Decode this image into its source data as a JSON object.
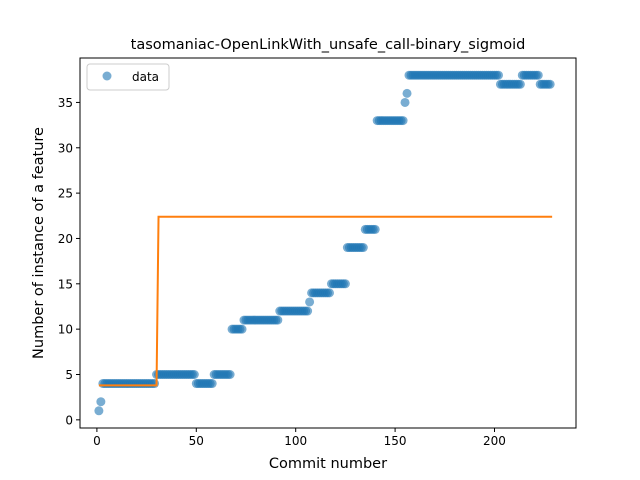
{
  "chart_data": {
    "type": "scatter",
    "title": "tasomaniac-OpenLinkWith_unsafe_call-binary_sigmoid",
    "xlabel": "Commit number",
    "ylabel": "Number of instance of a feature",
    "xlim": [
      -8.5,
      241
    ],
    "ylim": [
      -0.9,
      39.9
    ],
    "xticks": [
      0,
      50,
      100,
      150,
      200
    ],
    "yticks": [
      0,
      5,
      10,
      15,
      20,
      25,
      30,
      35
    ],
    "legend": {
      "position": "top-left",
      "entries": [
        "data"
      ]
    },
    "grid": false,
    "colors": {
      "data": "#1f77b4",
      "fit": "#ff7f0e"
    },
    "series": [
      {
        "name": "data",
        "kind": "scatter",
        "runs": [
          [
            1,
            1,
            1
          ],
          [
            2,
            2,
            2
          ],
          [
            3,
            29,
            4
          ],
          [
            30,
            49,
            5
          ],
          [
            50,
            58,
            4
          ],
          [
            59,
            67,
            5
          ],
          [
            68,
            73,
            10
          ],
          [
            74,
            91,
            11
          ],
          [
            92,
            106,
            12
          ],
          [
            107,
            107,
            13
          ],
          [
            108,
            117,
            14
          ],
          [
            118,
            125,
            15
          ],
          [
            126,
            134,
            19
          ],
          [
            135,
            140,
            21
          ],
          [
            141,
            154,
            33
          ],
          [
            155,
            155,
            35
          ],
          [
            156,
            156,
            36
          ],
          [
            157,
            202,
            38
          ],
          [
            203,
            213,
            37
          ],
          [
            214,
            222,
            38
          ],
          [
            223,
            228,
            37
          ]
        ]
      },
      {
        "kind": "line",
        "x": [
          1,
          30,
          31,
          229
        ],
        "y": [
          3.8,
          3.8,
          22.4,
          22.4
        ]
      }
    ]
  }
}
